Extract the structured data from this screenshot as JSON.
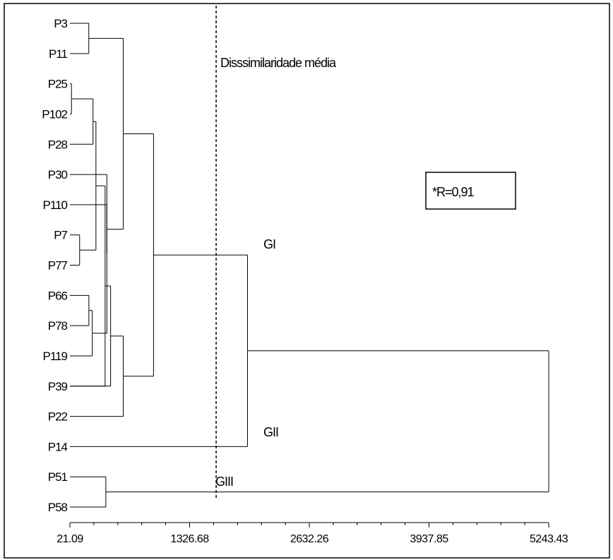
{
  "chart_data": {
    "type": "dendrogram",
    "orientation": "horizontal",
    "x_axis": {
      "range": [
        21.09,
        5243.43
      ],
      "ticks": [
        "21.09",
        "1326.68",
        "2632.26",
        "3937.85",
        "5243.43"
      ],
      "tick_values": [
        21.09,
        1326.68,
        2632.26,
        3937.85,
        5243.43
      ]
    },
    "leaves": [
      "P3",
      "P11",
      "P25",
      "P102",
      "P28",
      "P30",
      "P110",
      "P7",
      "P77",
      "P66",
      "P78",
      "P119",
      "P39",
      "P22",
      "P14",
      "P51",
      "P58"
    ],
    "merges": [
      {
        "left": 2,
        "right": 3,
        "height": 38
      },
      {
        "left": 9,
        "right": 10,
        "height": 228
      },
      {
        "left": 7,
        "right": 8,
        "height": 127
      },
      {
        "left": 17,
        "right": 4,
        "height": 273
      },
      {
        "left": 18,
        "right": 11,
        "height": 265
      },
      {
        "left": 20,
        "right": 19,
        "height": 305
      },
      {
        "left": 0,
        "right": 1,
        "height": 227
      },
      {
        "left": 21,
        "right": 5,
        "height": 424
      },
      {
        "left": 24,
        "right": 6,
        "height": 424
      },
      {
        "left": 22,
        "right": 12,
        "height": 405
      },
      {
        "left": 15,
        "right": 16,
        "height": 413
      },
      {
        "left": 26,
        "right": 12,
        "height": 465
      },
      {
        "left": 23,
        "right": 25,
        "height": 603
      },
      {
        "left": 28,
        "right": 13,
        "height": 603
      },
      {
        "left": 29,
        "right": 30,
        "height": 933
      },
      {
        "left": 31,
        "right": 14,
        "height": 1958
      },
      {
        "left": 32,
        "right": 27,
        "height": 5243.43
      }
    ],
    "reference_line": {
      "label": "Disssimilaridade média",
      "value": 1616
    },
    "group_labels": [
      "GI",
      "GII",
      "GIII"
    ],
    "correlation_label": "*R=0,91"
  }
}
